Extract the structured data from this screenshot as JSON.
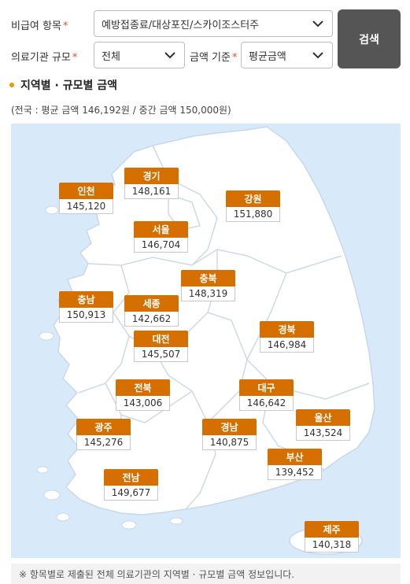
{
  "filters": {
    "noncovered_item": {
      "label": "비급여 항목",
      "required_mark": "*",
      "value": "예방접종료/대상포진/스카이조스터주"
    },
    "facility_scale": {
      "label": "의료기관 규모",
      "required_mark": "*",
      "value": "전체"
    },
    "amount_basis": {
      "label": "금액 기준",
      "required_mark": "*",
      "value": "평균금액"
    },
    "search_label": "검색"
  },
  "section": {
    "title": "지역별 · 규모별 금액",
    "summary": "(전국 : 평균 금액 146,192원 / 중간 금액 150,000원)"
  },
  "regions": {
    "gyeonggi": {
      "name": "경기",
      "amount": "148,161"
    },
    "incheon": {
      "name": "인천",
      "amount": "145,120"
    },
    "gangwon": {
      "name": "강원",
      "amount": "151,880"
    },
    "seoul": {
      "name": "서울",
      "amount": "146,704"
    },
    "chungbuk": {
      "name": "충북",
      "amount": "148,319"
    },
    "chungnam": {
      "name": "충남",
      "amount": "150,913"
    },
    "sejong": {
      "name": "세종",
      "amount": "142,662"
    },
    "gyeongbuk": {
      "name": "경북",
      "amount": "146,984"
    },
    "daejeon": {
      "name": "대전",
      "amount": "145,507"
    },
    "jeonbuk": {
      "name": "전북",
      "amount": "143,006"
    },
    "daegu": {
      "name": "대구",
      "amount": "146,642"
    },
    "ulsan": {
      "name": "울산",
      "amount": "143,524"
    },
    "gwangju": {
      "name": "광주",
      "amount": "145,276"
    },
    "gyeongnam": {
      "name": "경남",
      "amount": "140,875"
    },
    "busan": {
      "name": "부산",
      "amount": "139,452"
    },
    "jeonnam": {
      "name": "전남",
      "amount": "149,677"
    },
    "jeju": {
      "name": "제주",
      "amount": "140,318"
    }
  },
  "footnote": "※ 항목별로 제출된 전체 의료기관의 지역별 · 규모별 금액 정보입니다.",
  "colors": {
    "label_bg": "#d46f00",
    "map_land": "#ffffff",
    "map_sea": "#d8e9fa",
    "search_bg": "#555555",
    "accent_dot": "#f09a00"
  }
}
